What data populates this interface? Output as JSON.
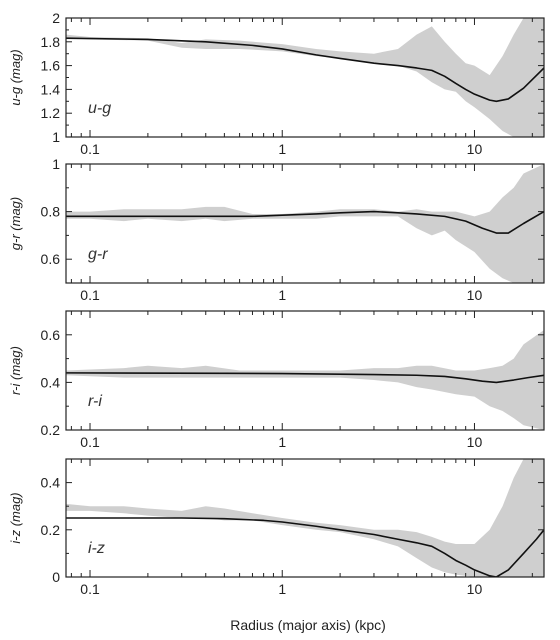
{
  "chart_data": [
    {
      "type": "line",
      "panel_label": "u-g",
      "ylabel": "u-g  (mag)",
      "xscale": "log",
      "xlim": [
        0.075,
        23
      ],
      "ylim": [
        1.0,
        2.0
      ],
      "yticks": [
        1,
        1.2,
        1.4,
        1.6,
        1.8,
        2
      ],
      "ytick_labels": [
        "1",
        "1.2",
        "1.4",
        "1.6",
        "1.8",
        "2"
      ],
      "xticks": [
        0.1,
        1,
        10
      ],
      "xtick_labels": [
        "0.1",
        "1",
        "10"
      ],
      "band": [
        {
          "x": 0.075,
          "lo": 1.83,
          "hi": 1.86
        },
        {
          "x": 0.1,
          "lo": 1.82,
          "hi": 1.84
        },
        {
          "x": 0.2,
          "lo": 1.81,
          "hi": 1.83
        },
        {
          "x": 0.3,
          "lo": 1.75,
          "hi": 1.79
        },
        {
          "x": 0.4,
          "lo": 1.74,
          "hi": 1.82
        },
        {
          "x": 0.6,
          "lo": 1.74,
          "hi": 1.81
        },
        {
          "x": 1.0,
          "lo": 1.72,
          "hi": 1.78
        },
        {
          "x": 1.5,
          "lo": 1.68,
          "hi": 1.74
        },
        {
          "x": 2.0,
          "lo": 1.66,
          "hi": 1.72
        },
        {
          "x": 3.0,
          "lo": 1.62,
          "hi": 1.7
        },
        {
          "x": 4.0,
          "lo": 1.6,
          "hi": 1.74
        },
        {
          "x": 5.0,
          "lo": 1.55,
          "hi": 1.86
        },
        {
          "x": 6.0,
          "lo": 1.46,
          "hi": 1.93
        },
        {
          "x": 7.0,
          "lo": 1.4,
          "hi": 1.8
        },
        {
          "x": 8.0,
          "lo": 1.38,
          "hi": 1.7
        },
        {
          "x": 9.0,
          "lo": 1.3,
          "hi": 1.62
        },
        {
          "x": 10.0,
          "lo": 1.25,
          "hi": 1.6
        },
        {
          "x": 12.0,
          "lo": 1.15,
          "hi": 1.52
        },
        {
          "x": 14.0,
          "lo": 1.05,
          "hi": 1.68
        },
        {
          "x": 16.0,
          "lo": 1.0,
          "hi": 1.86
        },
        {
          "x": 18.0,
          "lo": 1.0,
          "hi": 2.0
        },
        {
          "x": 23.0,
          "lo": 1.0,
          "hi": 2.0
        }
      ],
      "model": [
        {
          "x": 0.075,
          "y": 1.83
        },
        {
          "x": 0.2,
          "y": 1.82
        },
        {
          "x": 0.4,
          "y": 1.8
        },
        {
          "x": 0.7,
          "y": 1.77
        },
        {
          "x": 1.0,
          "y": 1.74
        },
        {
          "x": 1.5,
          "y": 1.69
        },
        {
          "x": 2.0,
          "y": 1.66
        },
        {
          "x": 3.0,
          "y": 1.62
        },
        {
          "x": 4.0,
          "y": 1.6
        },
        {
          "x": 5.0,
          "y": 1.58
        },
        {
          "x": 6.0,
          "y": 1.56
        },
        {
          "x": 7.0,
          "y": 1.51
        },
        {
          "x": 8.0,
          "y": 1.45
        },
        {
          "x": 9.0,
          "y": 1.4
        },
        {
          "x": 10.0,
          "y": 1.36
        },
        {
          "x": 12.0,
          "y": 1.31
        },
        {
          "x": 13.0,
          "y": 1.3
        },
        {
          "x": 15.0,
          "y": 1.32
        },
        {
          "x": 18.0,
          "y": 1.41
        },
        {
          "x": 23.0,
          "y": 1.58
        }
      ]
    },
    {
      "type": "line",
      "panel_label": "g-r",
      "ylabel": "g-r  (mag)",
      "xscale": "log",
      "xlim": [
        0.075,
        23
      ],
      "ylim": [
        0.5,
        1.0
      ],
      "yticks": [
        0.6,
        0.8,
        1
      ],
      "ytick_labels": [
        "0.6",
        "0.8",
        "1"
      ],
      "xticks": [
        0.1,
        1,
        10
      ],
      "xtick_labels": [
        "0.1",
        "1",
        "10"
      ],
      "band": [
        {
          "x": 0.075,
          "lo": 0.77,
          "hi": 0.8
        },
        {
          "x": 0.1,
          "lo": 0.77,
          "hi": 0.8
        },
        {
          "x": 0.15,
          "lo": 0.76,
          "hi": 0.81
        },
        {
          "x": 0.2,
          "lo": 0.77,
          "hi": 0.81
        },
        {
          "x": 0.3,
          "lo": 0.76,
          "hi": 0.81
        },
        {
          "x": 0.4,
          "lo": 0.77,
          "hi": 0.82
        },
        {
          "x": 0.5,
          "lo": 0.76,
          "hi": 0.82
        },
        {
          "x": 0.7,
          "lo": 0.77,
          "hi": 0.79
        },
        {
          "x": 1.0,
          "lo": 0.77,
          "hi": 0.79
        },
        {
          "x": 1.5,
          "lo": 0.77,
          "hi": 0.8
        },
        {
          "x": 2.0,
          "lo": 0.78,
          "hi": 0.81
        },
        {
          "x": 3.0,
          "lo": 0.78,
          "hi": 0.81
        },
        {
          "x": 4.0,
          "lo": 0.78,
          "hi": 0.8
        },
        {
          "x": 5.0,
          "lo": 0.73,
          "hi": 0.81
        },
        {
          "x": 6.0,
          "lo": 0.7,
          "hi": 0.8
        },
        {
          "x": 7.0,
          "lo": 0.72,
          "hi": 0.8
        },
        {
          "x": 8.0,
          "lo": 0.68,
          "hi": 0.8
        },
        {
          "x": 10.0,
          "lo": 0.63,
          "hi": 0.78
        },
        {
          "x": 12.0,
          "lo": 0.56,
          "hi": 0.8
        },
        {
          "x": 14.0,
          "lo": 0.52,
          "hi": 0.86
        },
        {
          "x": 16.0,
          "lo": 0.5,
          "hi": 0.9
        },
        {
          "x": 18.0,
          "lo": 0.5,
          "hi": 0.96
        },
        {
          "x": 23.0,
          "lo": 0.5,
          "hi": 1.0
        }
      ],
      "model": [
        {
          "x": 0.075,
          "y": 0.78
        },
        {
          "x": 0.3,
          "y": 0.78
        },
        {
          "x": 0.7,
          "y": 0.78
        },
        {
          "x": 1.0,
          "y": 0.785
        },
        {
          "x": 1.5,
          "y": 0.79
        },
        {
          "x": 2.0,
          "y": 0.795
        },
        {
          "x": 3.0,
          "y": 0.8
        },
        {
          "x": 4.0,
          "y": 0.795
        },
        {
          "x": 5.0,
          "y": 0.79
        },
        {
          "x": 7.0,
          "y": 0.78
        },
        {
          "x": 9.0,
          "y": 0.76
        },
        {
          "x": 11.0,
          "y": 0.73
        },
        {
          "x": 13.0,
          "y": 0.71
        },
        {
          "x": 15.0,
          "y": 0.71
        },
        {
          "x": 18.0,
          "y": 0.75
        },
        {
          "x": 23.0,
          "y": 0.8
        }
      ]
    },
    {
      "type": "line",
      "panel_label": "r-i",
      "ylabel": "r-i  (mag)",
      "xscale": "log",
      "xlim": [
        0.075,
        23
      ],
      "ylim": [
        0.2,
        0.7
      ],
      "yticks": [
        0.2,
        0.4,
        0.6
      ],
      "ytick_labels": [
        "0.2",
        "0.4",
        "0.6"
      ],
      "xticks": [
        0.1,
        1,
        10
      ],
      "xtick_labels": [
        "0.1",
        "1",
        "10"
      ],
      "band": [
        {
          "x": 0.075,
          "lo": 0.43,
          "hi": 0.45
        },
        {
          "x": 0.15,
          "lo": 0.42,
          "hi": 0.46
        },
        {
          "x": 0.2,
          "lo": 0.42,
          "hi": 0.47
        },
        {
          "x": 0.3,
          "lo": 0.42,
          "hi": 0.46
        },
        {
          "x": 0.4,
          "lo": 0.42,
          "hi": 0.47
        },
        {
          "x": 0.6,
          "lo": 0.42,
          "hi": 0.45
        },
        {
          "x": 1.0,
          "lo": 0.42,
          "hi": 0.45
        },
        {
          "x": 2.0,
          "lo": 0.42,
          "hi": 0.45
        },
        {
          "x": 3.0,
          "lo": 0.41,
          "hi": 0.46
        },
        {
          "x": 4.0,
          "lo": 0.4,
          "hi": 0.46
        },
        {
          "x": 5.0,
          "lo": 0.38,
          "hi": 0.47
        },
        {
          "x": 6.0,
          "lo": 0.37,
          "hi": 0.47
        },
        {
          "x": 8.0,
          "lo": 0.35,
          "hi": 0.45
        },
        {
          "x": 10.0,
          "lo": 0.34,
          "hi": 0.45
        },
        {
          "x": 12.0,
          "lo": 0.3,
          "hi": 0.46
        },
        {
          "x": 14.0,
          "lo": 0.28,
          "hi": 0.47
        },
        {
          "x": 16.0,
          "lo": 0.25,
          "hi": 0.5
        },
        {
          "x": 18.0,
          "lo": 0.22,
          "hi": 0.56
        },
        {
          "x": 23.0,
          "lo": 0.2,
          "hi": 0.62
        }
      ],
      "model": [
        {
          "x": 0.075,
          "y": 0.44
        },
        {
          "x": 0.5,
          "y": 0.438
        },
        {
          "x": 1.0,
          "y": 0.437
        },
        {
          "x": 3.0,
          "y": 0.433
        },
        {
          "x": 5.0,
          "y": 0.43
        },
        {
          "x": 7.0,
          "y": 0.425
        },
        {
          "x": 9.0,
          "y": 0.415
        },
        {
          "x": 11.0,
          "y": 0.405
        },
        {
          "x": 13.0,
          "y": 0.4
        },
        {
          "x": 16.0,
          "y": 0.41
        },
        {
          "x": 19.0,
          "y": 0.42
        },
        {
          "x": 23.0,
          "y": 0.43
        }
      ]
    },
    {
      "type": "line",
      "panel_label": "i-z",
      "ylabel": "i-z  (mag)",
      "xlabel": "Radius (major axis)  (kpc)",
      "xscale": "log",
      "xlim": [
        0.075,
        23
      ],
      "ylim": [
        0.0,
        0.5
      ],
      "yticks": [
        0,
        0.2,
        0.4
      ],
      "ytick_labels": [
        "0",
        "0.2",
        "0.4"
      ],
      "xticks": [
        0.1,
        1,
        10
      ],
      "xtick_labels": [
        "0.1",
        "1",
        "10"
      ],
      "band": [
        {
          "x": 0.075,
          "lo": 0.28,
          "hi": 0.31
        },
        {
          "x": 0.1,
          "lo": 0.28,
          "hi": 0.3
        },
        {
          "x": 0.15,
          "lo": 0.27,
          "hi": 0.3
        },
        {
          "x": 0.2,
          "lo": 0.26,
          "hi": 0.29
        },
        {
          "x": 0.3,
          "lo": 0.25,
          "hi": 0.28
        },
        {
          "x": 0.4,
          "lo": 0.25,
          "hi": 0.3
        },
        {
          "x": 0.5,
          "lo": 0.24,
          "hi": 0.29
        },
        {
          "x": 0.7,
          "lo": 0.24,
          "hi": 0.27
        },
        {
          "x": 1.0,
          "lo": 0.22,
          "hi": 0.25
        },
        {
          "x": 1.5,
          "lo": 0.2,
          "hi": 0.23
        },
        {
          "x": 2.0,
          "lo": 0.19,
          "hi": 0.22
        },
        {
          "x": 3.0,
          "lo": 0.16,
          "hi": 0.2
        },
        {
          "x": 4.0,
          "lo": 0.13,
          "hi": 0.2
        },
        {
          "x": 5.0,
          "lo": 0.08,
          "hi": 0.19
        },
        {
          "x": 6.0,
          "lo": 0.04,
          "hi": 0.17
        },
        {
          "x": 7.0,
          "lo": 0.02,
          "hi": 0.15
        },
        {
          "x": 8.0,
          "lo": 0.01,
          "hi": 0.14
        },
        {
          "x": 10.0,
          "lo": 0.0,
          "hi": 0.14
        },
        {
          "x": 12.0,
          "lo": 0.0,
          "hi": 0.2
        },
        {
          "x": 14.0,
          "lo": 0.0,
          "hi": 0.3
        },
        {
          "x": 16.0,
          "lo": 0.0,
          "hi": 0.42
        },
        {
          "x": 18.0,
          "lo": 0.0,
          "hi": 0.5
        },
        {
          "x": 23.0,
          "lo": 0.0,
          "hi": 0.5
        }
      ],
      "model": [
        {
          "x": 0.075,
          "y": 0.25
        },
        {
          "x": 0.3,
          "y": 0.25
        },
        {
          "x": 0.5,
          "y": 0.247
        },
        {
          "x": 0.8,
          "y": 0.24
        },
        {
          "x": 1.0,
          "y": 0.233
        },
        {
          "x": 1.5,
          "y": 0.215
        },
        {
          "x": 2.0,
          "y": 0.2
        },
        {
          "x": 3.0,
          "y": 0.18
        },
        {
          "x": 4.0,
          "y": 0.16
        },
        {
          "x": 5.0,
          "y": 0.145
        },
        {
          "x": 6.0,
          "y": 0.13
        },
        {
          "x": 7.0,
          "y": 0.1
        },
        {
          "x": 8.0,
          "y": 0.07
        },
        {
          "x": 9.0,
          "y": 0.05
        },
        {
          "x": 10.0,
          "y": 0.03
        },
        {
          "x": 12.0,
          "y": 0.005
        },
        {
          "x": 13.0,
          "y": 0.0
        },
        {
          "x": 15.0,
          "y": 0.03
        },
        {
          "x": 18.0,
          "y": 0.1
        },
        {
          "x": 21.0,
          "y": 0.16
        },
        {
          "x": 23.0,
          "y": 0.2
        }
      ]
    }
  ],
  "colors": {
    "band": "#cfcfcf",
    "model_line": "#111111",
    "axes": "#222222"
  }
}
